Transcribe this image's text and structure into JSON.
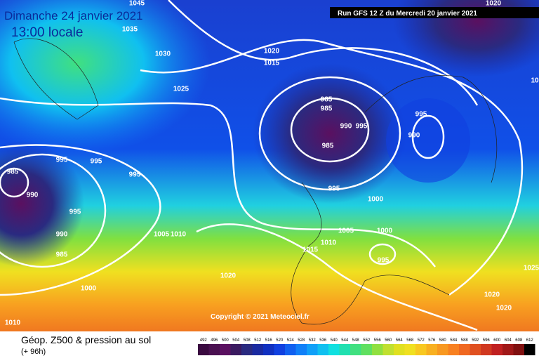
{
  "header": {
    "date": "Dimanche 24 janvier 2021",
    "time": "13:00 locale",
    "run": "Run GFS 12 Z du Mercredi 20 janvier 2021"
  },
  "copyright": "Copyright © 2021 Meteociel.fr",
  "isobar_labels": [
    "1045",
    "1035",
    "1030",
    "1025",
    "1020",
    "1015",
    "985",
    "985",
    "990",
    "995",
    "985",
    "995",
    "990",
    "995",
    "995",
    "995",
    "985",
    "990",
    "995",
    "990",
    "985",
    "1005",
    "1010",
    "995",
    "1000",
    "1000",
    "1005",
    "1010",
    "1015",
    "995",
    "1020",
    "1000",
    "1010",
    "1020",
    "1020",
    "1025",
    "1020",
    "10"
  ],
  "legend": {
    "title": "Géop. Z500 & pression au sol",
    "subtitle": "(+ 96h)",
    "labels": [
      "492",
      "496",
      "500",
      "504",
      "508",
      "512",
      "516",
      "520",
      "524",
      "528",
      "532",
      "536",
      "540",
      "544",
      "548",
      "552",
      "556",
      "560",
      "564",
      "568",
      "572",
      "576",
      "580",
      "584",
      "588",
      "592",
      "596",
      "600",
      "604",
      "608",
      "612"
    ],
    "colors": [
      "#3a0a40",
      "#4a1050",
      "#5a1060",
      "#3a1a60",
      "#2a2a80",
      "#1a2aa0",
      "#1030c0",
      "#1040e0",
      "#1060f0",
      "#1080f8",
      "#10a0f8",
      "#10c0f0",
      "#10e0e0",
      "#20e0b0",
      "#40e080",
      "#60e060",
      "#90e040",
      "#c0e030",
      "#e0e020",
      "#f0e020",
      "#f8c820",
      "#f8b020",
      "#f89820",
      "#f88020",
      "#f06820",
      "#e05020",
      "#d03820",
      "#c02020",
      "#a01818",
      "#801010",
      "#000000"
    ]
  }
}
